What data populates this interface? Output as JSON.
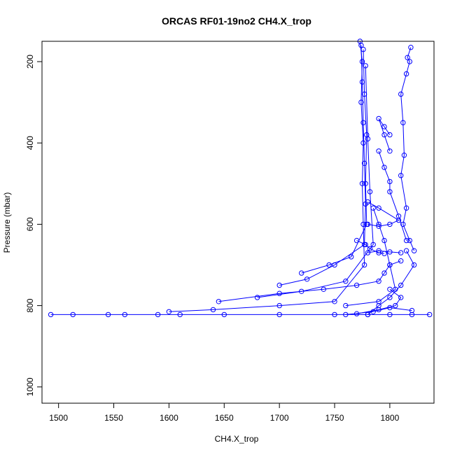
{
  "chart_data": {
    "type": "line",
    "title": "ORCAS RF01-19no2 CH4.X_trop",
    "xlabel": "CH4.X_trop",
    "ylabel": "Pressure (mbar)",
    "xlim": [
      1485,
      1840
    ],
    "ylim": [
      1040,
      150
    ],
    "y_reversed": true,
    "x_ticks": [
      1500,
      1550,
      1600,
      1650,
      1700,
      1750,
      1800
    ],
    "y_ticks": [
      200,
      400,
      600,
      800,
      1000
    ],
    "marker": "open-circle",
    "grid": false,
    "legend": "none",
    "colors": {
      "series": "#0000ff",
      "axis": "#000000"
    },
    "series": [
      {
        "x": [
          1493,
          1513,
          1545,
          1560,
          1590,
          1610,
          1650,
          1700,
          1750,
          1780,
          1800,
          1820,
          1836
        ],
        "y": [
          822,
          822,
          822,
          822,
          822,
          822,
          822,
          822,
          822,
          822,
          822,
          822,
          822
        ]
      },
      {
        "x": [
          1600,
          1640,
          1700,
          1750,
          1777,
          1776,
          1775,
          1776,
          1774,
          1775,
          1773
        ],
        "y": [
          815,
          810,
          800,
          790,
          700,
          600,
          500,
          400,
          300,
          200,
          150
        ]
      },
      {
        "x": [
          1700,
          1725,
          1750,
          1777,
          1778,
          1777,
          1776,
          1775,
          1774
        ],
        "y": [
          750,
          735,
          700,
          650,
          550,
          450,
          350,
          250,
          160
        ]
      },
      {
        "x": [
          1720,
          1745,
          1765,
          1779,
          1778,
          1779,
          1777,
          1776
        ],
        "y": [
          720,
          700,
          680,
          600,
          500,
          380,
          280,
          170
        ]
      },
      {
        "x": [
          1680,
          1720,
          1760,
          1785,
          1782,
          1780,
          1778
        ],
        "y": [
          780,
          765,
          740,
          650,
          520,
          390,
          210
        ]
      },
      {
        "x": [
          1645,
          1700,
          1740,
          1770,
          1790,
          1795,
          1800,
          1810
        ],
        "y": [
          790,
          770,
          760,
          750,
          740,
          720,
          700,
          690
        ]
      },
      {
        "x": [
          1760,
          1790,
          1805,
          1800,
          1795,
          1790,
          1785
        ],
        "y": [
          800,
          790,
          760,
          700,
          640,
          600,
          560
        ]
      },
      {
        "x": [
          1822,
          1818,
          1812,
          1815,
          1810,
          1813,
          1812,
          1810,
          1815,
          1818,
          1816,
          1819
        ],
        "y": [
          665,
          640,
          600,
          560,
          480,
          430,
          350,
          280,
          230,
          200,
          190,
          165
        ]
      },
      {
        "x": [
          1780,
          1790,
          1800,
          1810,
          1822,
          1815
        ],
        "y": [
          822,
          800,
          780,
          750,
          700,
          665
        ]
      },
      {
        "x": [
          1815,
          1808,
          1800,
          1800,
          1795,
          1790
        ],
        "y": [
          640,
          580,
          520,
          495,
          460,
          420
        ]
      },
      {
        "x": [
          1800,
          1795,
          1790,
          1795,
          1800
        ],
        "y": [
          380,
          360,
          340,
          380,
          420
        ]
      },
      {
        "x": [
          1780,
          1790,
          1800,
          1808,
          1790,
          1780
        ],
        "y": [
          600,
          605,
          600,
          590,
          560,
          545
        ]
      },
      {
        "x": [
          1770,
          1790,
          1805,
          1810,
          1800
        ],
        "y": [
          820,
          810,
          800,
          780,
          760
        ]
      },
      {
        "x": [
          1760,
          1785,
          1800,
          1820
        ],
        "y": [
          822,
          815,
          805,
          812
        ]
      },
      {
        "x": [
          1780,
          1790,
          1800,
          1810
        ],
        "y": [
          670,
          665,
          668,
          670
        ]
      },
      {
        "x": [
          1770,
          1778,
          1782,
          1790,
          1795
        ],
        "y": [
          640,
          650,
          660,
          670,
          672
        ]
      }
    ]
  }
}
